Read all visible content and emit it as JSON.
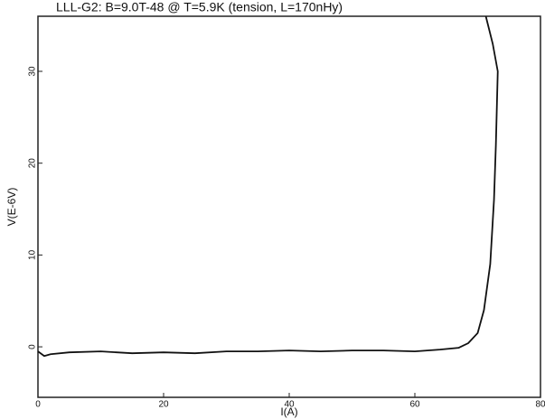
{
  "chart_data": {
    "type": "line",
    "title": "LLL-G2: B=9.0T-48 @ T=5.9K (tension, L=170nHy)",
    "x_label": "I(A)",
    "y_label": "V(E-6V)",
    "xlim": [
      0,
      80
    ],
    "xticks": [
      0,
      20,
      40,
      60,
      80
    ],
    "ylim": [
      -5.5,
      36
    ],
    "yticks": [
      0,
      10,
      20,
      30
    ],
    "series": [
      {
        "color": "#111111",
        "x": [
          0,
          1,
          2,
          5,
          10,
          15,
          20,
          25,
          30,
          35,
          40,
          45,
          50,
          55,
          60,
          64,
          67,
          68.5,
          70,
          71,
          72,
          72.6,
          72.9,
          73.2,
          72.4,
          71.3
        ],
        "values": [
          -0.5,
          -1,
          -0.8,
          -0.6,
          -0.5,
          -0.7,
          -0.6,
          -0.7,
          -0.5,
          -0.5,
          -0.4,
          -0.5,
          -0.4,
          -0.4,
          -0.5,
          -0.3,
          -0.1,
          0.4,
          1.5,
          4,
          9,
          16,
          22,
          30,
          33,
          36
        ]
      }
    ]
  }
}
